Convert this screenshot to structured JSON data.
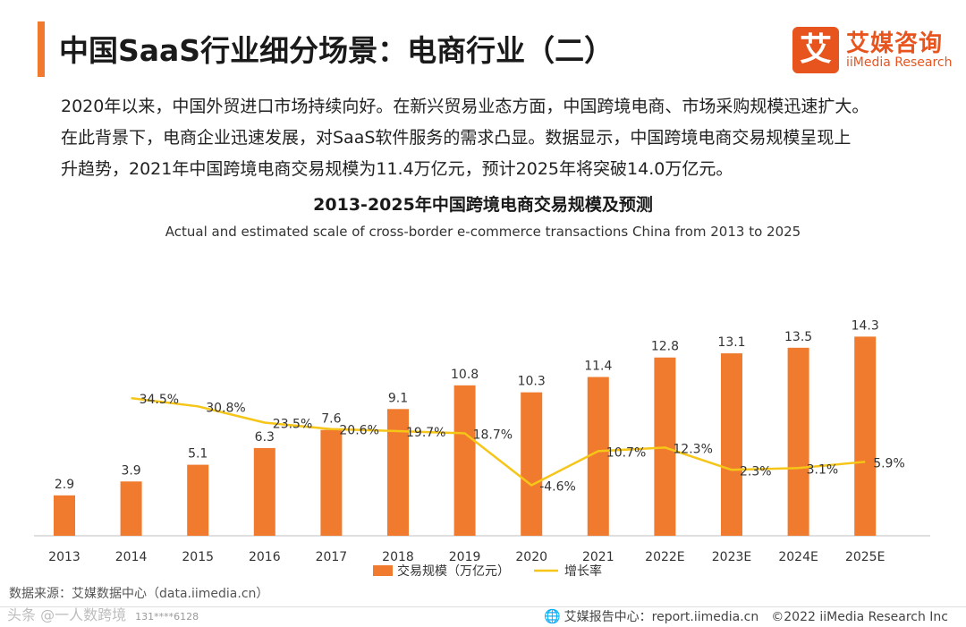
{
  "header": {
    "title": "中国SaaS行业细分场景：电商行业（二）",
    "logo_mark": "艾",
    "logo_cn": "艾媒咨询",
    "logo_en": "iiMedia Research"
  },
  "intro": [
    "2020年以来，中国外贸进口市场持续向好。在新兴贸易业态方面，中国跨境电商、市场采购规模迅速扩大。",
    "在此背景下，电商企业迅速发展，对SaaS软件服务的需求凸显。数据显示，中国跨境电商交易规模呈现上",
    "升趋势，2021年中国跨境电商交易规模为11.4万亿元，预计2025年将突破14.0万亿元。"
  ],
  "chart_data": {
    "type": "bar",
    "title": "2013-2025年中国跨境电商交易规模及预测",
    "subtitle": "Actual and estimated scale of cross-border e-commerce transactions China from 2013 to 2025",
    "categories": [
      "2013",
      "2014",
      "2015",
      "2016",
      "2017",
      "2018",
      "2019",
      "2020",
      "2021",
      "2022E",
      "2023E",
      "2024E",
      "2025E"
    ],
    "series": [
      {
        "name": "交易规模（万亿元）",
        "type": "bar",
        "values": [
          2.9,
          3.9,
          5.1,
          6.3,
          7.6,
          9.1,
          10.8,
          10.3,
          11.4,
          12.8,
          13.1,
          13.5,
          14.3
        ],
        "labels": [
          "2.9",
          "3.9",
          "5.1",
          "6.3",
          "7.6",
          "9.1",
          "10.8",
          "10.3",
          "11.4",
          "12.8",
          "13.1",
          "13.5",
          "14.3"
        ]
      },
      {
        "name": "增长率",
        "type": "line",
        "values": [
          null,
          34.5,
          30.8,
          23.5,
          20.6,
          19.7,
          18.7,
          -4.6,
          10.7,
          12.3,
          2.3,
          3.1,
          5.9
        ],
        "labels": [
          "",
          "34.5%",
          "30.8%",
          "23.5%",
          "20.6%",
          "19.7%",
          "18.7%",
          "-4.6%",
          "10.7%",
          "12.3%",
          "2.3%",
          "3.1%",
          "5.9%"
        ]
      }
    ],
    "ylim_bar": [
      0,
      15
    ],
    "ylim_line": [
      -10,
      40
    ],
    "legend_position": "bottom-center",
    "grid": false
  },
  "colors": {
    "bar": "#f07b2f",
    "line": "#f5c518",
    "accent": "#e8541e",
    "axis": "#bfbfbf"
  },
  "footer": {
    "source": "数据来源：艾媒数据中心（data.iimedia.cn）",
    "watermark_left": "头条 @一人数跨境",
    "watermark_number": "131****6128",
    "report_center": "艾媒报告中心：report.iimedia.cn",
    "copyright": "©2022 iiMedia Research Inc"
  }
}
